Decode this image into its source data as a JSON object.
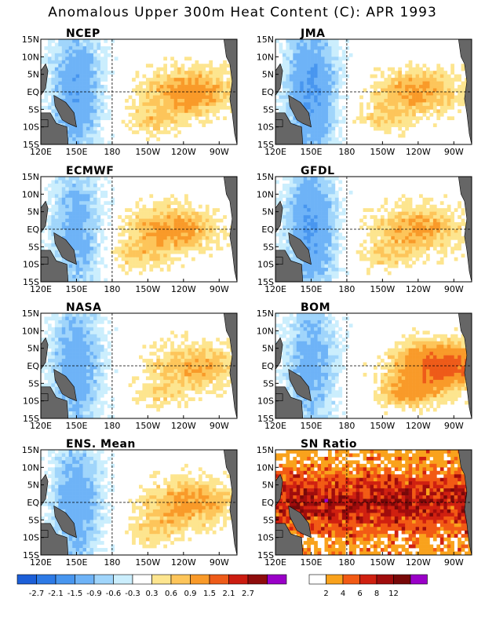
{
  "title": "Anomalous Upper 300m Heat Content (C): APR 1993",
  "chart_data": [
    {
      "type": "heatmap",
      "title": "NCEP",
      "scheme": "anom",
      "lat_ticks": [
        "15N",
        "10N",
        "5N",
        "EQ",
        "5S",
        "10S",
        "15S"
      ],
      "lon_ticks": [
        "120E",
        "150E",
        "180",
        "150W",
        "120W",
        "90W"
      ],
      "lat_range": [
        -15,
        15
      ],
      "lon_range": [
        120,
        -75
      ],
      "cold_west_amp": 1.4,
      "warm_east_amp": 1.2,
      "warm_center_lon": -115
    },
    {
      "type": "heatmap",
      "title": "JMA",
      "scheme": "anom",
      "lat_ticks": [
        "15N",
        "10N",
        "5N",
        "EQ",
        "5S",
        "10S",
        "15S"
      ],
      "lon_ticks": [
        "120E",
        "150E",
        "180",
        "150W",
        "120W",
        "90W"
      ],
      "lat_range": [
        -15,
        15
      ],
      "lon_range": [
        120,
        -75
      ],
      "cold_west_amp": 1.6,
      "warm_east_amp": 1.0,
      "warm_center_lon": -120
    },
    {
      "type": "heatmap",
      "title": "ECMWF",
      "scheme": "anom",
      "lat_ticks": [
        "15N",
        "10N",
        "5N",
        "EQ",
        "5S",
        "10S",
        "15S"
      ],
      "lon_ticks": [
        "120E",
        "150E",
        "180",
        "150W",
        "120W",
        "90W"
      ],
      "lat_range": [
        -15,
        15
      ],
      "lon_range": [
        120,
        -75
      ],
      "cold_west_amp": 1.2,
      "warm_east_amp": 1.1,
      "warm_center_lon": -130
    },
    {
      "type": "heatmap",
      "title": "GFDL",
      "scheme": "anom",
      "lat_ticks": [
        "15N",
        "10N",
        "5N",
        "EQ",
        "5S",
        "10S",
        "15S"
      ],
      "lon_ticks": [
        "120E",
        "150E",
        "180",
        "150W",
        "120W",
        "90W"
      ],
      "lat_range": [
        -15,
        15
      ],
      "lon_range": [
        120,
        -75
      ],
      "cold_west_amp": 1.5,
      "warm_east_amp": 1.0,
      "warm_center_lon": -120
    },
    {
      "type": "heatmap",
      "title": "NASA",
      "scheme": "anom",
      "lat_ticks": [
        "15N",
        "10N",
        "5N",
        "EQ",
        "5S",
        "10S",
        "15S"
      ],
      "lon_ticks": [
        "120E",
        "150E",
        "180",
        "150W",
        "120W",
        "90W"
      ],
      "lat_range": [
        -15,
        15
      ],
      "lon_range": [
        120,
        -75
      ],
      "cold_west_amp": 1.3,
      "warm_east_amp": 0.9,
      "warm_center_lon": -110
    },
    {
      "type": "heatmap",
      "title": "BOM",
      "scheme": "anom",
      "lat_ticks": [
        "15N",
        "10N",
        "5N",
        "EQ",
        "5S",
        "10S",
        "15S"
      ],
      "lon_ticks": [
        "120E",
        "150E",
        "180",
        "150W",
        "120W",
        "90W"
      ],
      "lat_range": [
        -15,
        15
      ],
      "lon_range": [
        120,
        -75
      ],
      "cold_west_amp": 1.2,
      "warm_east_amp": 1.9,
      "warm_center_lon": -100
    },
    {
      "type": "heatmap",
      "title": "ENS. Mean",
      "scheme": "anom",
      "lat_ticks": [
        "15N",
        "10N",
        "5N",
        "EQ",
        "5S",
        "10S",
        "15S"
      ],
      "lon_ticks": [
        "120E",
        "150E",
        "180",
        "150W",
        "120W",
        "90W"
      ],
      "lat_range": [
        -15,
        15
      ],
      "lon_range": [
        120,
        -75
      ],
      "cold_west_amp": 1.3,
      "warm_east_amp": 1.1,
      "warm_center_lon": -115
    },
    {
      "type": "heatmap",
      "title": "SN Ratio",
      "scheme": "sn",
      "lat_ticks": [
        "15N",
        "10N",
        "5N",
        "EQ",
        "5S",
        "10S",
        "15S"
      ],
      "lon_ticks": [
        "120E",
        "150E",
        "180",
        "150W",
        "120W",
        "90W"
      ],
      "lat_range": [
        -15,
        15
      ],
      "lon_range": [
        120,
        -75
      ],
      "cold_west_amp": 1.0,
      "warm_east_amp": 1.0,
      "warm_center_lon": -110
    }
  ],
  "colorbars": {
    "anom": {
      "colors": [
        "#1c5fd8",
        "#2d7ae6",
        "#4896ef",
        "#6eb3f7",
        "#a0d5fb",
        "#cbeefd",
        "#ffffff",
        "#fde58f",
        "#fdc55a",
        "#f99a29",
        "#ee5b19",
        "#cc1c10",
        "#8e0c0c",
        "#9a00c8"
      ],
      "labels": [
        "-2.7",
        "-2.1",
        "-1.5",
        "-0.9",
        "-0.6",
        "-0.3",
        "0.3",
        "0.6",
        "0.9",
        "1.5",
        "2.1",
        "2.7"
      ]
    },
    "sn": {
      "colors": [
        "#ffffff",
        "#f9a21c",
        "#f25a14",
        "#d02010",
        "#a00c0c",
        "#780808",
        "#9a00c8"
      ],
      "labels": [
        "2",
        "4",
        "6",
        "8",
        "12"
      ]
    }
  },
  "land_color": "#666666"
}
